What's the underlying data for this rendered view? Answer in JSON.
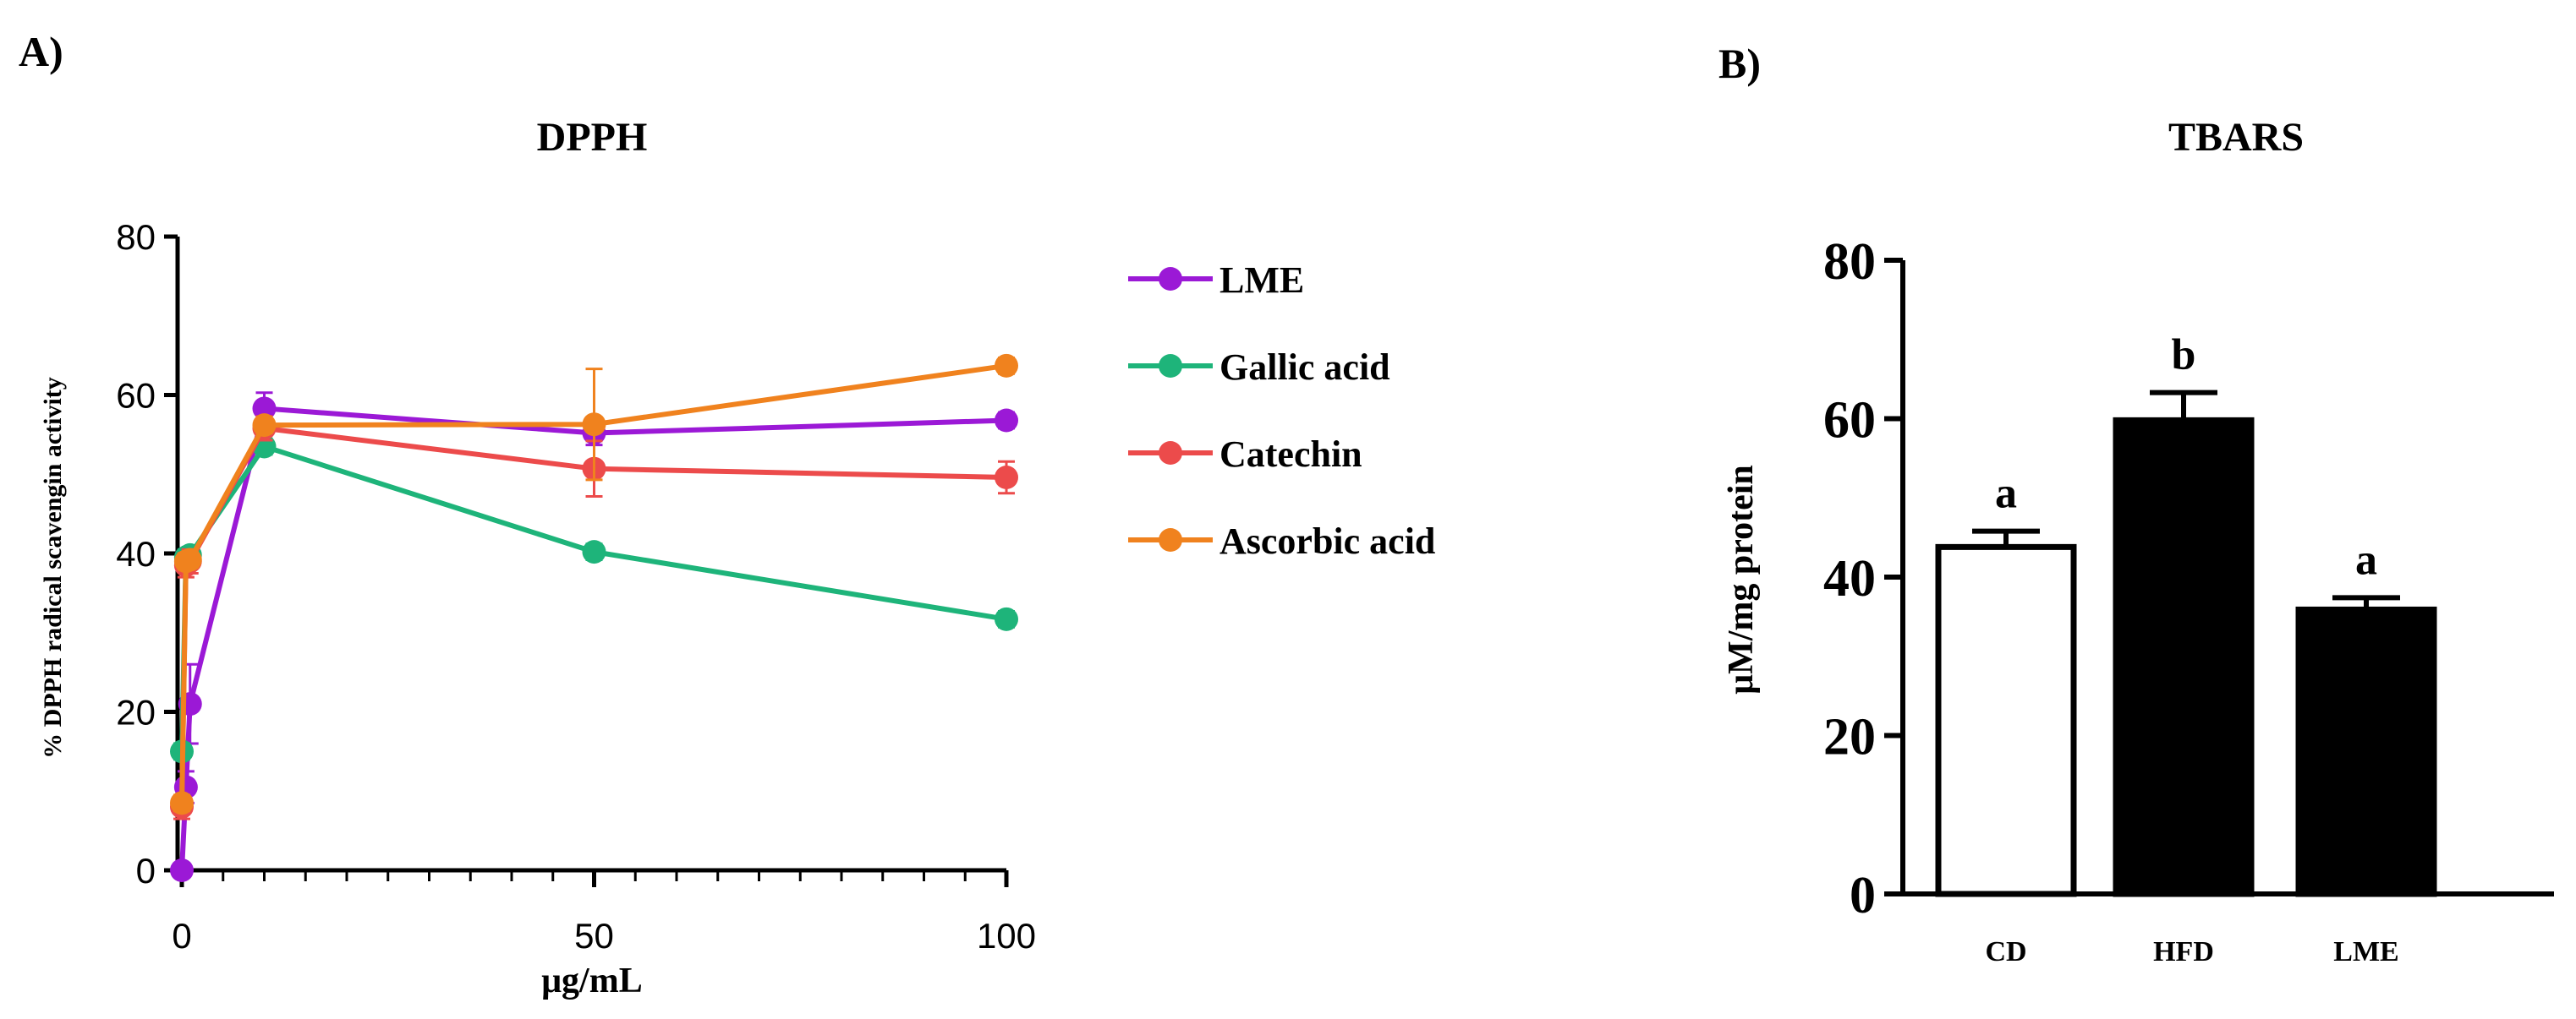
{
  "colors": {
    "axis": "#000000",
    "LME": "#9b19d6",
    "Gallic acid": "#1eb47a",
    "Catechin": "#ec4b4b",
    "Ascorbic acid": "#f0821e",
    "bar_CD": "#ffffff",
    "bar_dark": "#000000"
  },
  "chart_data": [
    {
      "panel_label": "A)",
      "type": "line",
      "title": "DPPH",
      "xlabel": "μg/mL",
      "ylabel": "% DPPH radical scavengin activity",
      "xlim": [
        0,
        100
      ],
      "ylim": [
        0,
        80
      ],
      "xticks": [
        0,
        50,
        100
      ],
      "xtick_labels": [
        "0",
        "50",
        "100"
      ],
      "yticks": [
        0,
        20,
        40,
        60,
        80
      ],
      "ytick_labels": [
        "0",
        "20",
        "40",
        "60",
        "80"
      ],
      "legend_position": "right",
      "series": [
        {
          "name": "LME",
          "x": [
            0,
            0.5,
            1,
            10,
            50,
            100
          ],
          "y": [
            0,
            10.5,
            21,
            58.3,
            55.2,
            56.8
          ],
          "err": [
            0,
            2,
            5,
            2,
            1.5,
            1
          ]
        },
        {
          "name": "Gallic acid",
          "x": [
            0,
            0.5,
            1,
            10,
            50,
            100
          ],
          "y": [
            15,
            39.5,
            39.8,
            53.5,
            40.2,
            31.7
          ],
          "err": [
            1,
            1,
            1,
            1,
            1,
            1
          ]
        },
        {
          "name": "Catechin",
          "x": [
            0,
            0.5,
            1,
            10,
            50,
            100
          ],
          "y": [
            8,
            38.5,
            39,
            55.8,
            50.7,
            49.6
          ],
          "err": [
            1.5,
            1.5,
            1.5,
            1.5,
            3.5,
            2
          ]
        },
        {
          "name": "Ascorbic acid",
          "x": [
            0,
            0.5,
            1,
            10,
            50,
            100
          ],
          "y": [
            8.5,
            39,
            39.2,
            56.2,
            56.3,
            63.7
          ],
          "err": [
            1,
            1,
            1,
            1,
            7,
            1
          ]
        }
      ]
    },
    {
      "panel_label": "B)",
      "type": "bar",
      "title": "TBARS",
      "xlabel": "",
      "ylabel": "μM/mg protein",
      "categories": [
        "CD",
        "HFD",
        "LME"
      ],
      "values": [
        43.8,
        59.8,
        35.9
      ],
      "errors": [
        2,
        3.5,
        1.5
      ],
      "significance": [
        "a",
        "b",
        "a"
      ],
      "ylim": [
        0,
        80
      ],
      "yticks": [
        0,
        20,
        40,
        60,
        80
      ],
      "ytick_labels": [
        "0",
        "20",
        "40",
        "60",
        "80"
      ]
    }
  ]
}
